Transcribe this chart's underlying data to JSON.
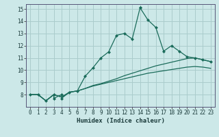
{
  "xlabel": "Humidex (Indice chaleur)",
  "background_color": "#cce8e8",
  "grid_color": "#aacccc",
  "line_color": "#1a6b5a",
  "xlim": [
    -0.5,
    23.5
  ],
  "ylim": [
    7,
    15.4
  ],
  "yticks": [
    8,
    9,
    10,
    11,
    12,
    13,
    14,
    15
  ],
  "xticks": [
    0,
    1,
    2,
    3,
    4,
    5,
    6,
    7,
    8,
    9,
    10,
    11,
    12,
    13,
    14,
    15,
    16,
    17,
    18,
    19,
    20,
    21,
    22,
    23
  ],
  "line1_x": [
    0,
    1,
    2,
    3,
    3,
    4,
    4,
    5,
    6,
    7,
    8,
    9,
    10,
    11,
    12,
    13,
    14,
    14,
    15,
    16,
    17,
    18,
    19,
    20,
    21,
    22,
    23
  ],
  "line1_y": [
    8.0,
    8.0,
    7.5,
    8.0,
    7.7,
    8.0,
    7.7,
    8.2,
    8.3,
    9.5,
    10.2,
    11.0,
    11.5,
    12.85,
    13.0,
    12.55,
    15.1,
    15.1,
    14.1,
    13.5,
    11.55,
    12.0,
    11.55,
    11.1,
    11.0,
    10.85,
    10.7
  ],
  "line2_x": [
    0,
    1,
    2,
    3,
    4,
    5,
    6,
    7,
    8,
    9,
    10,
    11,
    12,
    13,
    14,
    15,
    16,
    17,
    18,
    19,
    20,
    21,
    22,
    23
  ],
  "line2_y": [
    8.0,
    8.0,
    7.5,
    8.0,
    7.8,
    8.2,
    8.3,
    8.5,
    8.75,
    8.9,
    9.1,
    9.3,
    9.55,
    9.75,
    9.95,
    10.15,
    10.35,
    10.5,
    10.65,
    10.8,
    10.95,
    11.0,
    10.85,
    10.7
  ],
  "line3_x": [
    0,
    1,
    2,
    3,
    4,
    5,
    6,
    7,
    8,
    9,
    10,
    11,
    12,
    13,
    14,
    15,
    16,
    17,
    18,
    19,
    20,
    21,
    22,
    23
  ],
  "line3_y": [
    8.0,
    8.0,
    7.5,
    8.0,
    7.8,
    8.2,
    8.3,
    8.5,
    8.7,
    8.85,
    9.0,
    9.15,
    9.3,
    9.45,
    9.6,
    9.75,
    9.85,
    9.95,
    10.05,
    10.15,
    10.25,
    10.3,
    10.25,
    10.15
  ]
}
